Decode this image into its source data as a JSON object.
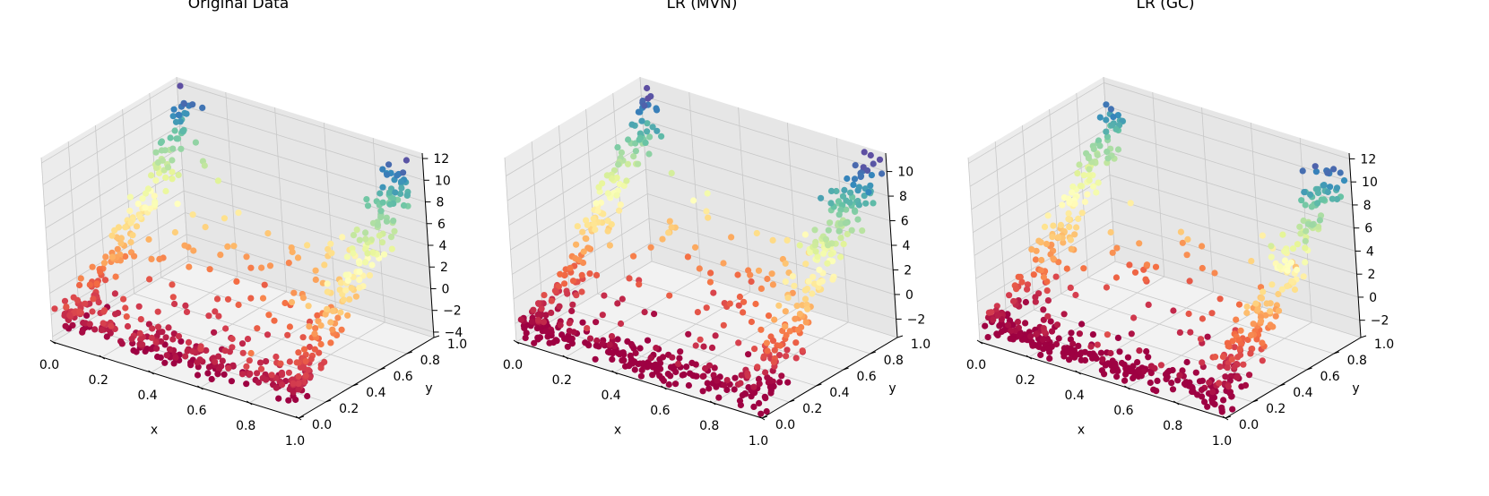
{
  "chart_data": [
    {
      "type": "scatter",
      "projection": "3d",
      "title": "Original Data",
      "xlabel": "x",
      "ylabel": "y",
      "zlabel": "",
      "xlim": [
        0.0,
        1.0
      ],
      "ylim": [
        0.0,
        1.0
      ],
      "zlim": [
        -4.5,
        12.5
      ],
      "xticks": [
        "0.0",
        "0.2",
        "0.4",
        "0.6",
        "0.8",
        "1.0"
      ],
      "yticks": [
        "0.0",
        "0.2",
        "0.4",
        "0.6",
        "0.8",
        "1.0"
      ],
      "zticks": [
        "−4",
        "−2",
        "0",
        "2",
        "4",
        "6",
        "8",
        "10",
        "12"
      ],
      "ztick_values": [
        -4,
        -2,
        0,
        2,
        4,
        6,
        8,
        10,
        12
      ],
      "colormap": "Spectral (by z value)",
      "seed": 11,
      "n_points": 620
    },
    {
      "type": "scatter",
      "projection": "3d",
      "title": "LR (MVN)",
      "xlabel": "x",
      "ylabel": "y",
      "zlabel": "",
      "xlim": [
        0.0,
        1.0
      ],
      "ylim": [
        0.0,
        1.0
      ],
      "zlim": [
        -3.5,
        11.5
      ],
      "xticks": [
        "0.0",
        "0.2",
        "0.4",
        "0.6",
        "0.8",
        "1.0"
      ],
      "yticks": [
        "0.0",
        "0.2",
        "0.4",
        "0.6",
        "0.8",
        "1.0"
      ],
      "zticks": [
        "−2",
        "0",
        "2",
        "4",
        "6",
        "8",
        "10"
      ],
      "ztick_values": [
        -2,
        0,
        2,
        4,
        6,
        8,
        10
      ],
      "colormap": "Spectral (by z value)",
      "seed": 29,
      "n_points": 620
    },
    {
      "type": "scatter",
      "projection": "3d",
      "title": "LR (GC)",
      "xlabel": "x",
      "ylabel": "y",
      "zlabel": "",
      "xlim": [
        0.0,
        1.0
      ],
      "ylim": [
        0.0,
        1.0
      ],
      "zlim": [
        -3.5,
        12.5
      ],
      "xticks": [
        "0.0",
        "0.2",
        "0.4",
        "0.6",
        "0.8",
        "1.0"
      ],
      "yticks": [
        "0.0",
        "0.2",
        "0.4",
        "0.6",
        "0.8",
        "1.0"
      ],
      "zticks": [
        "−2",
        "0",
        "2",
        "4",
        "6",
        "8",
        "10",
        "12"
      ],
      "ztick_values": [
        -2,
        0,
        2,
        4,
        6,
        8,
        10,
        12
      ],
      "colormap": "Spectral (by z value)",
      "seed": 47,
      "n_points": 620
    }
  ],
  "colors": {
    "pane_back": "#e6e6e6",
    "pane_left": "#ececec",
    "pane_floor": "#f2f2f2",
    "grid": "#c8c8c8",
    "axis": "#000000"
  }
}
